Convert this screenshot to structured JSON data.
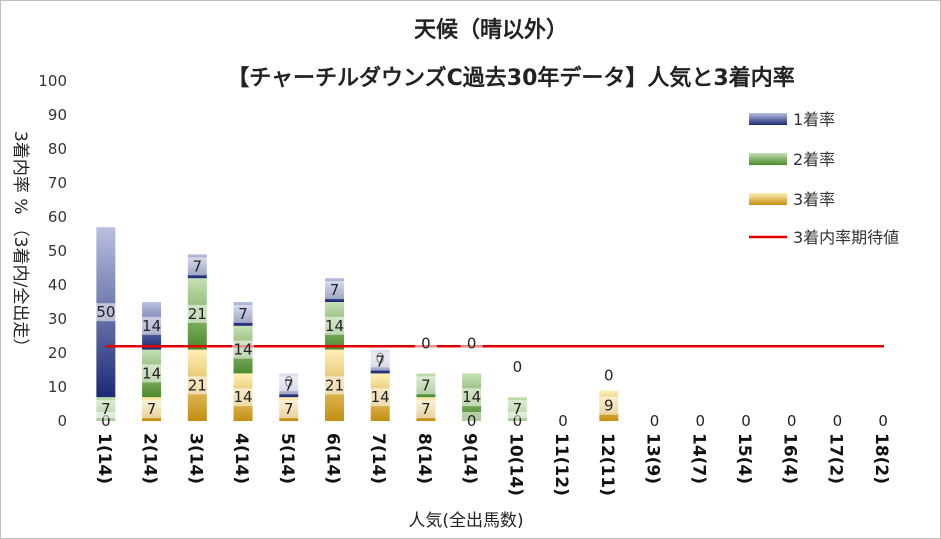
{
  "chart_data": {
    "type": "bar",
    "stacked": true,
    "title_line1": "天候（晴以外）",
    "title_line2": "【チャーチルダウンズC過去30年データ】人気と3着内率",
    "xlabel": "人気(全出馬数)",
    "ylabel": "3着内率 %  （3着内/全出走）",
    "ylim": [
      0,
      100
    ],
    "yticks": [
      "0",
      "10",
      "20",
      "30",
      "40",
      "50",
      "60",
      "70",
      "80",
      "90",
      "100"
    ],
    "grid": false,
    "legend_position": "right",
    "categories": [
      "1(14)",
      "2(14)",
      "3(14)",
      "4(14)",
      "5(14)",
      "6(14)",
      "7(14)",
      "8(14)",
      "9(14)",
      "10(14)",
      "11(12)",
      "12(11)",
      "13(9)",
      "14(7)",
      "15(4)",
      "16(4)",
      "17(2)",
      "18(2)"
    ],
    "series": [
      {
        "name": "3着率",
        "color": "#d9a520",
        "values": [
          0,
          7,
          21,
          14,
          7,
          21,
          14,
          7,
          0,
          0,
          0,
          9,
          0,
          0,
          0,
          0,
          0,
          0
        ]
      },
      {
        "name": "2着率",
        "color": "#5f9e3a",
        "values": [
          7,
          14,
          21,
          14,
          0,
          14,
          0,
          7,
          14,
          7,
          0,
          0,
          0,
          0,
          0,
          0,
          0,
          0
        ]
      },
      {
        "name": "1着率",
        "color": "#2e3f8f",
        "values": [
          50,
          14,
          7,
          7,
          7,
          7,
          7,
          0,
          0,
          0,
          0,
          0,
          0,
          0,
          0,
          0,
          0,
          0
        ]
      }
    ],
    "labels": {
      "3着率": [
        "0",
        "7",
        "21",
        "14",
        "7",
        "21",
        "14",
        "7",
        "0",
        "0",
        "0",
        "9",
        "0",
        "0",
        "0",
        "0",
        "0",
        "0"
      ],
      "2着率": [
        "7",
        "14",
        "21",
        "14",
        "0",
        "14",
        "0",
        "7",
        "14",
        "7",
        "",
        "0",
        "",
        "",
        "",
        "",
        "",
        ""
      ],
      "1着率": [
        "50",
        "14",
        "7",
        "7",
        "7",
        "7",
        "7",
        "0",
        "0",
        "0",
        "",
        "",
        "",
        "",
        "",
        "",
        "",
        ""
      ]
    },
    "expected_line": {
      "name": "3着内率期待値",
      "color": "#e00000",
      "value": 22
    }
  }
}
